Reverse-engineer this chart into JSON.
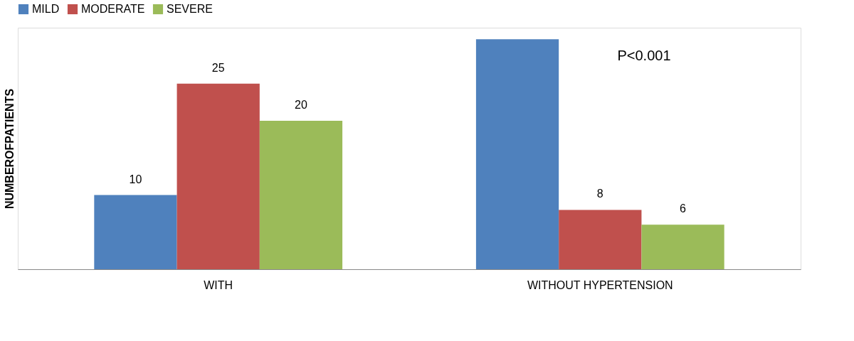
{
  "chart_data": {
    "type": "bar",
    "ylabel": "NUMBEROFPATIENTS",
    "categories": [
      "WITH",
      "WITHOUT HYPERTENSION"
    ],
    "series": [
      {
        "name": "MILD",
        "color": "#4f81bd",
        "values": [
          10,
          31
        ],
        "value_labels": [
          "10",
          null
        ]
      },
      {
        "name": "MODERATE",
        "color": "#c0504d",
        "values": [
          25,
          8
        ],
        "value_labels": [
          "25",
          "8"
        ]
      },
      {
        "name": "SEVERE",
        "color": "#9bbb59",
        "values": [
          20,
          6
        ],
        "value_labels": [
          "20",
          "6"
        ]
      }
    ],
    "annotations": [
      "P<0.001"
    ],
    "legend": "top",
    "grid": false
  }
}
